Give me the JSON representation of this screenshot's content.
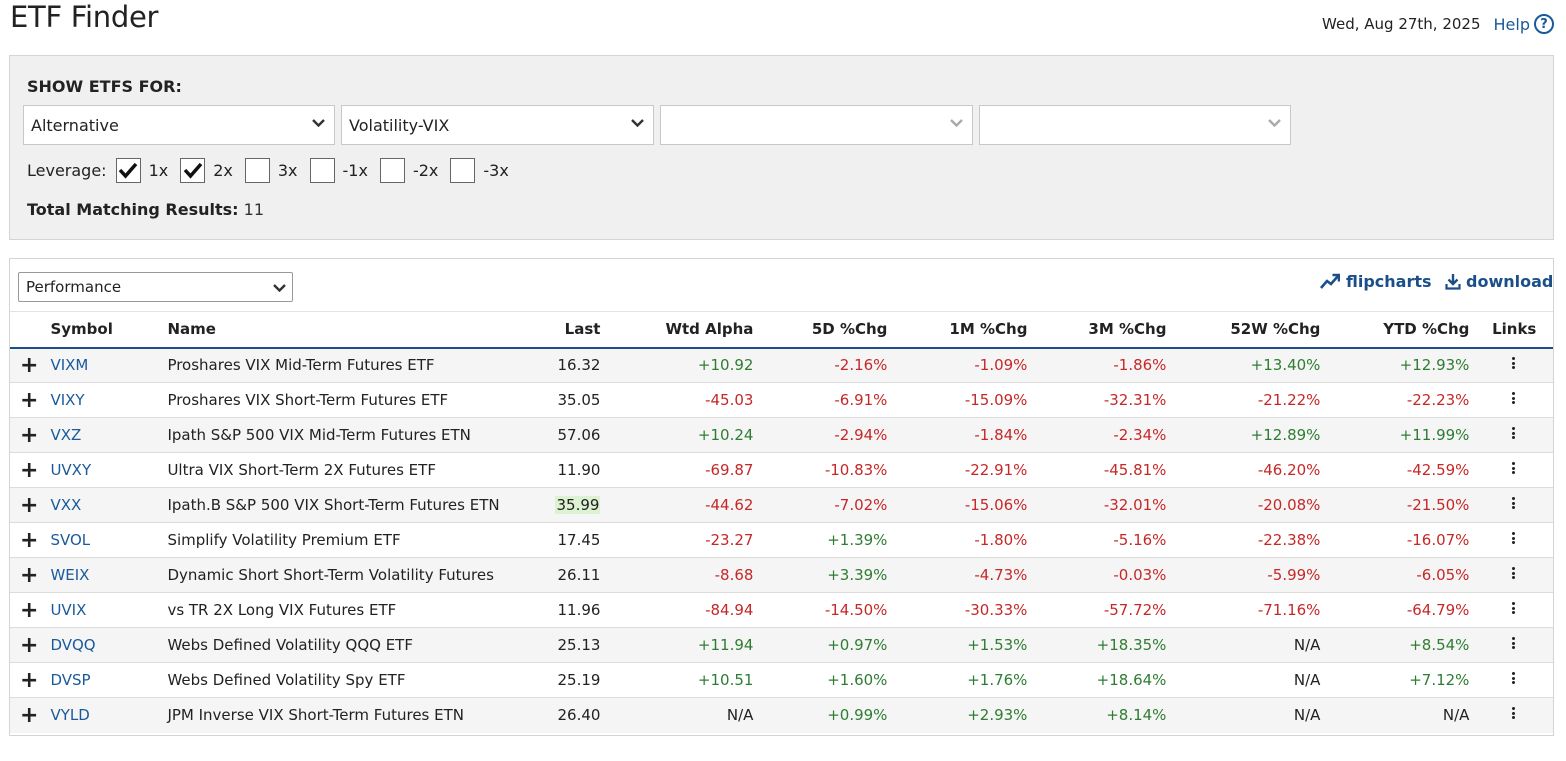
{
  "header": {
    "title": "ETF Finder",
    "date": "Wed, Aug 27th, 2025",
    "help_label": "Help"
  },
  "filters": {
    "show_label": "SHOW ETFS FOR:",
    "dropdowns": [
      "Alternative",
      "Volatility-VIX",
      "",
      ""
    ],
    "leverage_label": "Leverage:",
    "leverage": [
      {
        "label": "1x",
        "checked": true
      },
      {
        "label": "2x",
        "checked": true
      },
      {
        "label": "3x",
        "checked": false
      },
      {
        "label": "-1x",
        "checked": false
      },
      {
        "label": "-2x",
        "checked": false
      },
      {
        "label": "-3x",
        "checked": false
      }
    ],
    "total_label": "Total Matching Results:",
    "total_value": "11"
  },
  "results": {
    "view": "Performance",
    "flipcharts_label": "flipcharts",
    "download_label": "download",
    "columns": [
      "Symbol",
      "Name",
      "Last",
      "Wtd Alpha",
      "5D %Chg",
      "1M %Chg",
      "3M %Chg",
      "52W %Chg",
      "YTD %Chg",
      "Links"
    ],
    "rows": [
      [
        "VIXM",
        "Proshares VIX Mid-Term Futures ETF",
        "16.32",
        "+10.92",
        "-2.16%",
        "-1.09%",
        "-1.86%",
        "+13.40%",
        "+12.93%"
      ],
      [
        "VIXY",
        "Proshares VIX Short-Term Futures ETF",
        "35.05",
        "-45.03",
        "-6.91%",
        "-15.09%",
        "-32.31%",
        "-21.22%",
        "-22.23%"
      ],
      [
        "VXZ",
        "Ipath S&P 500 VIX Mid-Term Futures ETN",
        "57.06",
        "+10.24",
        "-2.94%",
        "-1.84%",
        "-2.34%",
        "+12.89%",
        "+11.99%"
      ],
      [
        "UVXY",
        "Ultra VIX Short-Term 2X Futures ETF",
        "11.90",
        "-69.87",
        "-10.83%",
        "-22.91%",
        "-45.81%",
        "-46.20%",
        "-42.59%"
      ],
      [
        "VXX",
        "Ipath.B S&P 500 VIX Short-Term Futures ETN",
        "35.99",
        "-44.62",
        "-7.02%",
        "-15.06%",
        "-32.01%",
        "-20.08%",
        "-21.50%"
      ],
      [
        "SVOL",
        "Simplify Volatility Premium ETF",
        "17.45",
        "-23.27",
        "+1.39%",
        "-1.80%",
        "-5.16%",
        "-22.38%",
        "-16.07%"
      ],
      [
        "WEIX",
        "Dynamic Short Short-Term Volatility Futures",
        "26.11",
        "-8.68",
        "+3.39%",
        "-4.73%",
        "-0.03%",
        "-5.99%",
        "-6.05%"
      ],
      [
        "UVIX",
        "vs TR 2X Long VIX Futures ETF",
        "11.96",
        "-84.94",
        "-14.50%",
        "-30.33%",
        "-57.72%",
        "-71.16%",
        "-64.79%"
      ],
      [
        "DVQQ",
        "Webs Defined Volatility QQQ ETF",
        "25.13",
        "+11.94",
        "+0.97%",
        "+1.53%",
        "+18.35%",
        "N/A",
        "+8.54%"
      ],
      [
        "DVSP",
        "Webs Defined Volatility Spy ETF",
        "25.19",
        "+10.51",
        "+1.60%",
        "+1.76%",
        "+18.64%",
        "N/A",
        "+7.12%"
      ],
      [
        "VYLD",
        "JPM Inverse VIX Short-Term Futures ETN",
        "26.40",
        "N/A",
        "+0.99%",
        "+2.93%",
        "+8.14%",
        "N/A",
        "N/A"
      ]
    ],
    "highlight": {
      "row": 4,
      "col": 2
    }
  },
  "colors": {
    "positive": "#2e7d32",
    "negative": "#c62828",
    "link": "#1a5a9a",
    "header_rule": "#1a4f8a"
  }
}
